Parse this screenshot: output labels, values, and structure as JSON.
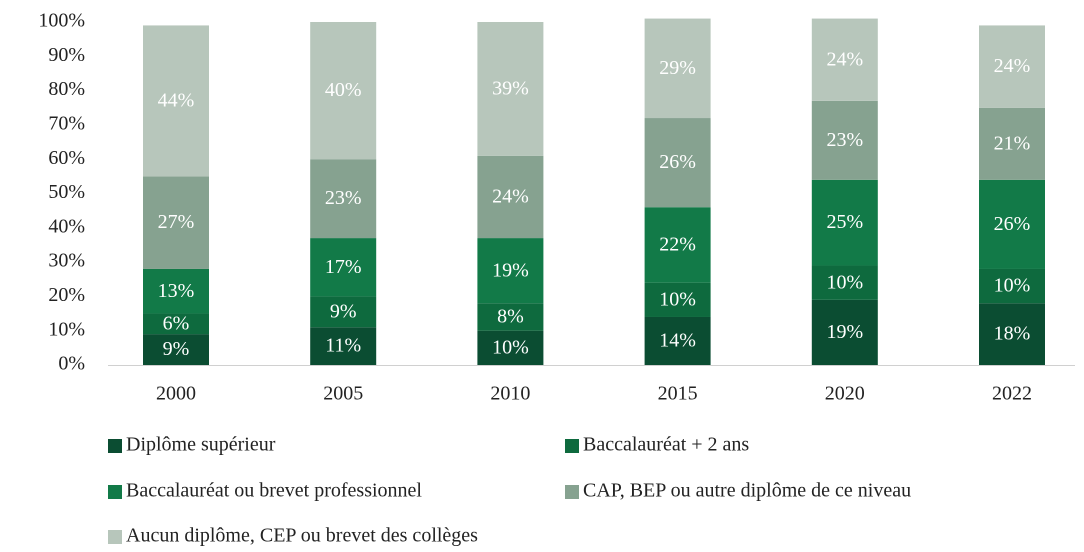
{
  "chart_data": {
    "type": "stacked_bar",
    "categories": [
      "2000",
      "2005",
      "2010",
      "2015",
      "2020",
      "2022"
    ],
    "series": [
      {
        "name": "Diplôme supérieur",
        "color": "#0b4d32",
        "values": [
          9,
          11,
          10,
          14,
          19,
          18
        ],
        "value_labels": [
          "9%",
          "11%",
          "10%",
          "14%",
          "19%",
          "18%"
        ]
      },
      {
        "name": "Baccalauréat + 2 ans",
        "color": "#0e6a3e",
        "values": [
          6,
          9,
          8,
          10,
          10,
          10
        ],
        "value_labels": [
          "6%",
          "9%",
          "8%",
          "10%",
          "10%",
          "10%"
        ]
      },
      {
        "name": "Baccalauréat ou brevet professionnel",
        "color": "#127a48",
        "values": [
          13,
          17,
          19,
          22,
          25,
          26
        ],
        "value_labels": [
          "13%",
          "17%",
          "19%",
          "22%",
          "25%",
          "26%"
        ]
      },
      {
        "name": "CAP, BEP ou autre diplôme de ce niveau",
        "color": "#86a290",
        "values": [
          27,
          23,
          24,
          26,
          23,
          21
        ],
        "value_labels": [
          "27%",
          "23%",
          "24%",
          "26%",
          "23%",
          "21%"
        ]
      },
      {
        "name": "Aucun diplôme, CEP ou brevet des collèges",
        "color": "#b7c6bb",
        "values": [
          44,
          40,
          39,
          29,
          24,
          24
        ],
        "value_labels": [
          "44%",
          "40%",
          "39%",
          "29%",
          "24%",
          "24%"
        ]
      }
    ],
    "ylim": [
      0,
      100
    ],
    "yticks": [
      {
        "value": 0,
        "label": "0%"
      },
      {
        "value": 10,
        "label": "10%"
      },
      {
        "value": 20,
        "label": "20%"
      },
      {
        "value": 30,
        "label": "30%"
      },
      {
        "value": 40,
        "label": "40%"
      },
      {
        "value": 50,
        "label": "50%"
      },
      {
        "value": 60,
        "label": "60%"
      },
      {
        "value": 70,
        "label": "70%"
      },
      {
        "value": 80,
        "label": "80%"
      },
      {
        "value": 90,
        "label": "90%"
      },
      {
        "value": 100,
        "label": "100%"
      }
    ],
    "grid": false,
    "legend": "bottom"
  }
}
